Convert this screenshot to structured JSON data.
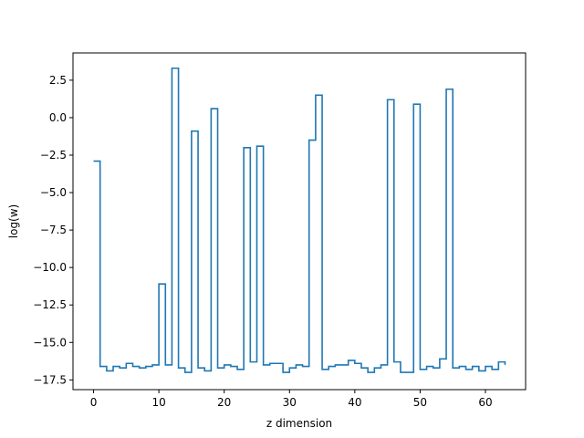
{
  "chart_data": {
    "type": "line",
    "drawstyle": "steps-post",
    "xlabel": "z dimension",
    "ylabel": "log(w)",
    "xlim": [
      -3.15,
      66.15
    ],
    "ylim": [
      -18.15,
      4.32
    ],
    "xticks": [
      0,
      10,
      20,
      30,
      40,
      50,
      60
    ],
    "yticks": [
      -17.5,
      -15.0,
      -12.5,
      -10.0,
      -7.5,
      -5.0,
      -2.5,
      0.0,
      2.5
    ],
    "yticklabels": [
      "−17.5",
      "−15.0",
      "−12.5",
      "−10.0",
      "−7.5",
      "−5.0",
      "−2.5",
      "0.0",
      "2.5"
    ],
    "grid": false,
    "line_color": "#1f77b4",
    "series": [
      {
        "x": [
          0,
          1,
          2,
          3,
          4,
          5,
          6,
          7,
          8,
          9,
          10,
          11,
          12,
          13,
          14,
          15,
          16,
          17,
          18,
          19,
          20,
          21,
          22,
          23,
          24,
          25,
          26,
          27,
          28,
          29,
          30,
          31,
          32,
          33,
          34,
          35,
          36,
          37,
          38,
          39,
          40,
          41,
          42,
          43,
          44,
          45,
          46,
          47,
          48,
          49,
          50,
          51,
          52,
          53,
          54,
          55,
          56,
          57,
          58,
          59,
          60,
          61,
          62,
          63
        ],
        "values": [
          -2.9,
          -16.6,
          -16.9,
          -16.6,
          -16.7,
          -16.4,
          -16.6,
          -16.7,
          -16.6,
          -16.5,
          -11.1,
          -16.5,
          3.3,
          -16.7,
          -17.0,
          -0.9,
          -16.7,
          -16.9,
          0.6,
          -16.7,
          -16.5,
          -16.6,
          -16.8,
          -2.0,
          -16.3,
          -1.9,
          -16.5,
          -16.4,
          -16.4,
          -17.0,
          -16.7,
          -16.5,
          -16.6,
          -1.5,
          1.5,
          -16.8,
          -16.6,
          -16.5,
          -16.5,
          -16.2,
          -16.4,
          -16.7,
          -17.0,
          -16.7,
          -16.5,
          1.2,
          -16.3,
          -17.0,
          -17.0,
          0.9,
          -16.8,
          -16.6,
          -16.7,
          -16.1,
          1.9,
          -16.7,
          -16.6,
          -16.8,
          -16.6,
          -16.9,
          -16.6,
          -16.8,
          -16.3,
          -16.5
        ]
      }
    ]
  }
}
